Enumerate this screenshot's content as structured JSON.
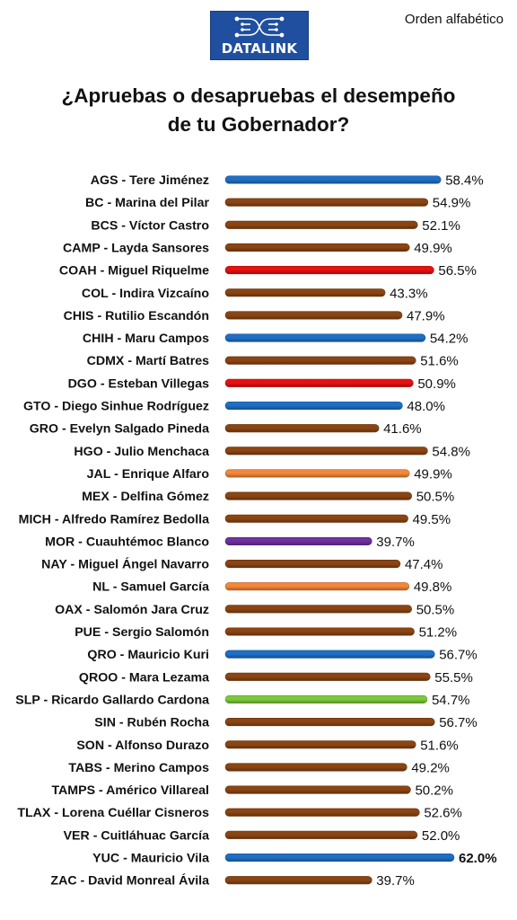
{
  "header": {
    "brand": "DATALINK",
    "order_note": "Orden alfabético",
    "title_line1": "¿Apruebas o desapruebas el desempeño",
    "title_line2": "de tu Gobernador?"
  },
  "colors": {
    "morena": "#8B4513",
    "pan": "#1F6FC5",
    "pri": "#E81010",
    "mc": "#F2873A",
    "pt": "#7030A0",
    "pvem": "#7DC93C"
  },
  "chart_data": {
    "type": "bar",
    "orientation": "horizontal",
    "title": "¿Apruebas o desapruebas el desempeño de tu Gobernador?",
    "unit": "%",
    "xlim": [
      0,
      62.0
    ],
    "grid": false,
    "categories": [
      "AGS - Tere Jiménez",
      "BC - Marina del Pilar",
      "BCS - Víctor Castro",
      "CAMP - Layda Sansores",
      "COAH - Miguel Riquelme",
      "COL - Indira Vizcaíno",
      "CHIS - Rutilio Escandón",
      "CHIH - Maru Campos",
      "CDMX - Martí Batres",
      "DGO - Esteban Villegas",
      "GTO - Diego Sinhue Rodríguez",
      "GRO - Evelyn Salgado Pineda",
      "HGO - Julio Menchaca",
      "JAL - Enrique Alfaro",
      "MEX - Delfina Gómez",
      "MICH - Alfredo Ramírez Bedolla",
      "MOR - Cuauhtémoc Blanco",
      "NAY - Miguel Ángel Navarro",
      "NL - Samuel García",
      "OAX - Salomón Jara Cruz",
      "PUE - Sergio Salomón",
      "QRO - Mauricio Kuri",
      "QROO - Mara Lezama",
      "SLP - Ricardo Gallardo Cardona",
      "SIN - Rubén Rocha",
      "SON - Alfonso Durazo",
      "TABS - Merino Campos",
      "TAMPS - Américo Villareal",
      "TLAX - Lorena Cuéllar Cisneros",
      "VER - Cuitláhuac García",
      "YUC - Mauricio Vila",
      "ZAC - David Monreal Ávila"
    ],
    "values": [
      58.4,
      54.9,
      52.1,
      49.9,
      56.5,
      43.3,
      47.9,
      54.2,
      51.6,
      50.9,
      48.0,
      41.6,
      54.8,
      49.9,
      50.5,
      49.5,
      39.7,
      47.4,
      49.8,
      50.5,
      51.2,
      56.7,
      55.5,
      54.7,
      56.7,
      51.6,
      49.2,
      50.2,
      52.6,
      52.0,
      62.0,
      39.7
    ],
    "labels": [
      "58.4%",
      "54.9%",
      "52.1%",
      "49.9%",
      "56.5%",
      "43.3%",
      "47.9%",
      "54.2%",
      "51.6%",
      "50.9%",
      "48.0%",
      "41.6%",
      "54.8%",
      "49.9%",
      "50.5%",
      "49.5%",
      "39.7%",
      "47.4%",
      "49.8%",
      "50.5%",
      "51.2%",
      "56.7%",
      "55.5%",
      "54.7%",
      "56.7%",
      "51.6%",
      "49.2%",
      "50.2%",
      "52.6%",
      "52.0%",
      "62.0%",
      "39.7%"
    ],
    "bar_colors": [
      "#1F6FC5",
      "#8B4513",
      "#8B4513",
      "#8B4513",
      "#E81010",
      "#8B4513",
      "#8B4513",
      "#1F6FC5",
      "#8B4513",
      "#E81010",
      "#1F6FC5",
      "#8B4513",
      "#8B4513",
      "#F2873A",
      "#8B4513",
      "#8B4513",
      "#7030A0",
      "#8B4513",
      "#F2873A",
      "#8B4513",
      "#8B4513",
      "#1F6FC5",
      "#8B4513",
      "#7DC93C",
      "#8B4513",
      "#8B4513",
      "#8B4513",
      "#8B4513",
      "#8B4513",
      "#8B4513",
      "#1F6FC5",
      "#8B4513"
    ],
    "highlight_max": true
  }
}
